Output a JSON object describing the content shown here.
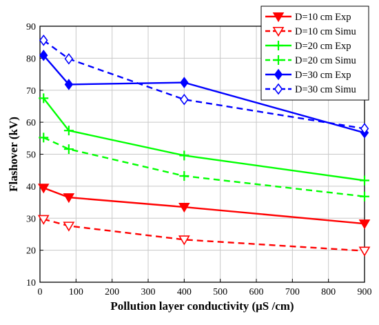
{
  "chart_data": {
    "type": "line",
    "title": "",
    "xlabel": "Pollution layer conductivity  (μS /cm)",
    "ylabel": "Flashover (kV)",
    "xlim": [
      0,
      900
    ],
    "ylim": [
      10,
      90
    ],
    "xticks": [
      "0",
      "100",
      "200",
      "300",
      "400",
      "500",
      "600",
      "700",
      "800",
      "900"
    ],
    "yticks": [
      "10",
      "20",
      "30",
      "40",
      "50",
      "60",
      "70",
      "80",
      "90"
    ],
    "grid": true,
    "legend_position": "top-right",
    "x": [
      10,
      80,
      400,
      900
    ],
    "series": [
      {
        "name": "D=10 cm Exp",
        "values": [
          39.5,
          36.5,
          33.5,
          28.3
        ],
        "color": "#ff0000",
        "line": "solid",
        "marker": "triangle-down-filled"
      },
      {
        "name": "D=10 cm Simu",
        "values": [
          29.7,
          27.6,
          23.3,
          19.8
        ],
        "color": "#ff0000",
        "line": "dashed",
        "marker": "triangle-down-open"
      },
      {
        "name": "D=20 cm Exp",
        "values": [
          67.5,
          57.4,
          49.6,
          41.8
        ],
        "color": "#00ff00",
        "line": "solid",
        "marker": "plus"
      },
      {
        "name": "D=20 cm Simu",
        "values": [
          55.2,
          51.6,
          43.2,
          36.8
        ],
        "color": "#00ff00",
        "line": "dashed",
        "marker": "plus"
      },
      {
        "name": "D=30 cm Exp",
        "values": [
          80.9,
          71.8,
          72.4,
          56.7
        ],
        "color": "#0000ff",
        "line": "solid",
        "marker": "diamond-filled"
      },
      {
        "name": "D=30 cm Simu",
        "values": [
          85.6,
          79.8,
          67.1,
          58.0
        ],
        "color": "#0000ff",
        "line": "dashed",
        "marker": "diamond-open"
      }
    ]
  }
}
